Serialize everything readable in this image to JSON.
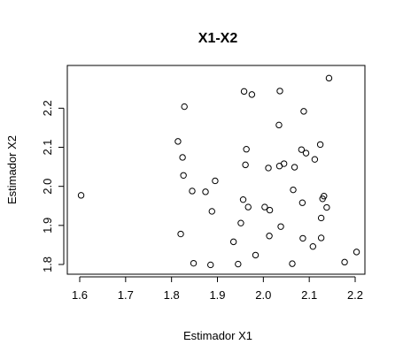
{
  "chart_data": {
    "type": "scatter",
    "title": "X1-X2",
    "xlabel": "Estimador X1",
    "ylabel": "Estimador X2",
    "xlim": [
      1.6,
      2.2
    ],
    "ylim": [
      1.8,
      2.28
    ],
    "x_ticks": [
      "1.6",
      "1.7",
      "1.8",
      "1.9",
      "2.0",
      "2.1",
      "2.2"
    ],
    "y_ticks": [
      "1.8",
      "1.9",
      "2.0",
      "2.1",
      "2.2"
    ],
    "grid": false,
    "legend": "none",
    "point_style": "open-circle",
    "points": [
      [
        1.603,
        1.977
      ],
      [
        1.814,
        2.115
      ],
      [
        1.82,
        1.878
      ],
      [
        1.824,
        2.074
      ],
      [
        1.826,
        2.028
      ],
      [
        1.828,
        2.204
      ],
      [
        1.845,
        1.988
      ],
      [
        1.848,
        1.803
      ],
      [
        1.874,
        1.986
      ],
      [
        1.885,
        1.799
      ],
      [
        1.888,
        1.936
      ],
      [
        1.895,
        2.014
      ],
      [
        1.935,
        1.858
      ],
      [
        1.945,
        1.801
      ],
      [
        1.951,
        1.906
      ],
      [
        1.956,
        1.966
      ],
      [
        1.958,
        2.243
      ],
      [
        1.961,
        2.055
      ],
      [
        1.963,
        2.095
      ],
      [
        1.967,
        1.947
      ],
      [
        1.975,
        2.235
      ],
      [
        1.983,
        1.824
      ],
      [
        2.003,
        1.947
      ],
      [
        2.011,
        2.047
      ],
      [
        2.013,
        1.873
      ],
      [
        2.014,
        1.939
      ],
      [
        2.034,
        2.157
      ],
      [
        2.035,
        2.052
      ],
      [
        2.036,
        2.244
      ],
      [
        2.038,
        1.897
      ],
      [
        2.045,
        2.058
      ],
      [
        2.063,
        1.802
      ],
      [
        2.065,
        1.991
      ],
      [
        2.068,
        2.049
      ],
      [
        2.083,
        2.094
      ],
      [
        2.085,
        1.958
      ],
      [
        2.086,
        1.867
      ],
      [
        2.088,
        2.192
      ],
      [
        2.093,
        2.085
      ],
      [
        2.108,
        1.846
      ],
      [
        2.112,
        2.069
      ],
      [
        2.124,
        2.107
      ],
      [
        2.126,
        1.868
      ],
      [
        2.126,
        1.919
      ],
      [
        2.129,
        1.968
      ],
      [
        2.132,
        1.975
      ],
      [
        2.138,
        1.946
      ],
      [
        2.143,
        2.277
      ],
      [
        2.177,
        1.806
      ],
      [
        2.203,
        1.832
      ]
    ]
  }
}
